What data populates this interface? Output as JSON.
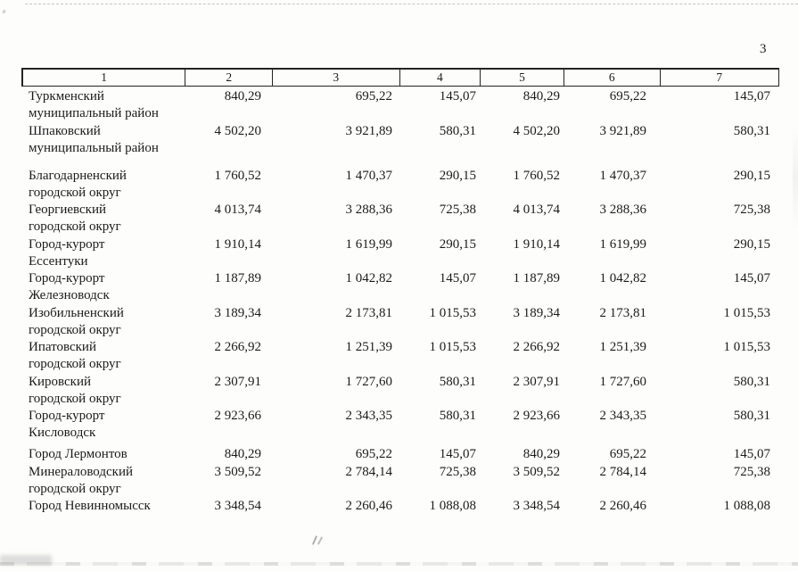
{
  "page": {
    "number": "3"
  },
  "table": {
    "header_cols": [
      "1",
      "2",
      "3",
      "4",
      "5",
      "6",
      "7"
    ],
    "rows": [
      {
        "name": "Туркменский\nмуниципальный район",
        "values": [
          "840,29",
          "695,22",
          "145,07",
          "840,29",
          "695,22",
          "145,07"
        ]
      },
      {
        "name": "Шпаковский\nмуниципальный район",
        "values": [
          "4 502,20",
          "3 921,89",
          "580,31",
          "4 502,20",
          "3 921,89",
          "580,31"
        ]
      },
      {
        "name": "Благодарненский\nгородской округ",
        "values": [
          "1 760,52",
          "1 470,37",
          "290,15",
          "1 760,52",
          "1 470,37",
          "290,15"
        ]
      },
      {
        "name": "Георгиевский\nгородской округ",
        "values": [
          "4 013,74",
          "3 288,36",
          "725,38",
          "4 013,74",
          "3 288,36",
          "725,38"
        ]
      },
      {
        "name": "Город-курорт\nЕссентуки",
        "values": [
          "1 910,14",
          "1 619,99",
          "290,15",
          "1 910,14",
          "1 619,99",
          "290,15"
        ]
      },
      {
        "name": "Город-курорт\nЖелезноводск",
        "values": [
          "1 187,89",
          "1 042,82",
          "145,07",
          "1 187,89",
          "1 042,82",
          "145,07"
        ]
      },
      {
        "name": "Изобильненский\nгородской округ",
        "values": [
          "3 189,34",
          "2 173,81",
          "1 015,53",
          "3 189,34",
          "2 173,81",
          "1 015,53"
        ]
      },
      {
        "name": "Ипатовский\nгородской округ",
        "values": [
          "2 266,92",
          "1 251,39",
          "1 015,53",
          "2 266,92",
          "1 251,39",
          "1 015,53"
        ]
      },
      {
        "name": "Кировский\nгородской округ",
        "values": [
          "2 307,91",
          "1 727,60",
          "580,31",
          "2 307,91",
          "1 727,60",
          "580,31"
        ]
      },
      {
        "name": "Город-курорт\nКисловодск",
        "values": [
          "2 923,66",
          "2 343,35",
          "580,31",
          "2 923,66",
          "2 343,35",
          "580,31"
        ]
      },
      {
        "name": "Город Лермонтов",
        "values": [
          "840,29",
          "695,22",
          "145,07",
          "840,29",
          "695,22",
          "145,07"
        ]
      },
      {
        "name": "Минераловодский\nгородской округ",
        "values": [
          "3 509,52",
          "2 784,14",
          "725,38",
          "3 509,52",
          "2 784,14",
          "725,38"
        ]
      },
      {
        "name": "Город Невинномысск",
        "values": [
          "3 348,54",
          "2 260,46",
          "1 088,08",
          "3 348,54",
          "2 260,46",
          "1 088,08"
        ]
      }
    ]
  }
}
